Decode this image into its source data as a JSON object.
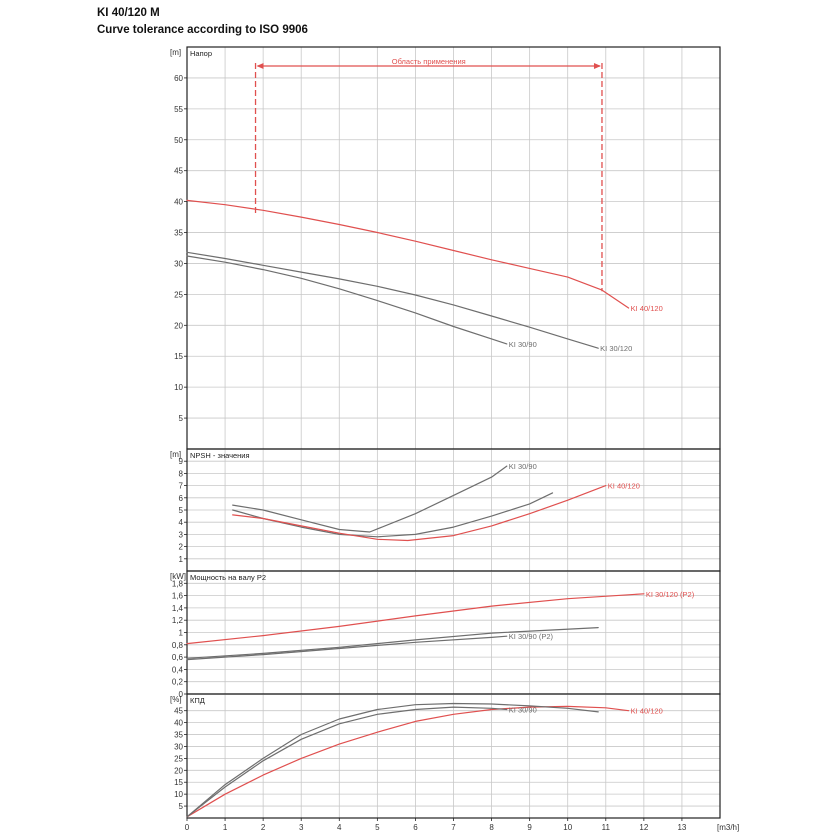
{
  "header": {
    "title": "KI 40/120 M",
    "subtitle": "Curve tolerance according to ISO 9906"
  },
  "colors": {
    "red": "#e0504f",
    "gray": "#6e6e6e",
    "grid": "#c8c8c8",
    "frame": "#222222"
  },
  "chart_data": {
    "type": "line",
    "x_axis": {
      "label": "[m3/h]",
      "range": [
        0,
        14
      ],
      "ticks": [
        "0",
        "1",
        "2",
        "3",
        "4",
        "5",
        "6",
        "7",
        "8",
        "9",
        "10",
        "11",
        "12",
        "13"
      ]
    },
    "application_range": {
      "label": "Область применения",
      "x": [
        1.8,
        10.9
      ]
    },
    "panels": [
      {
        "id": "head",
        "title": "Напор",
        "unit": "[m]",
        "ylim": [
          0,
          65
        ],
        "yticks": [
          "5",
          "10",
          "15",
          "20",
          "25",
          "30",
          "35",
          "40",
          "45",
          "50",
          "55",
          "60"
        ],
        "series": [
          {
            "name": "KI 40/120",
            "color": "red",
            "x": [
              0,
              1,
              2,
              3,
              4,
              5,
              6,
              7,
              8,
              9,
              10,
              10.9,
              11.6
            ],
            "y": [
              40.2,
              39.5,
              38.6,
              37.5,
              36.3,
              35.0,
              33.6,
              32.1,
              30.6,
              29.2,
              27.8,
              25.7,
              22.8
            ]
          },
          {
            "name": "KI 30/120",
            "color": "gray",
            "x": [
              0,
              1,
              2,
              3,
              4,
              5,
              6,
              7,
              8,
              9,
              10,
              10.8
            ],
            "y": [
              31.8,
              30.8,
              29.7,
              28.6,
              27.5,
              26.3,
              24.9,
              23.3,
              21.5,
              19.7,
              17.8,
              16.3
            ]
          },
          {
            "name": "KI 30/90",
            "color": "gray",
            "x": [
              0,
              1,
              2,
              3,
              4,
              5,
              6,
              7,
              8,
              8.4
            ],
            "y": [
              31.2,
              30.2,
              29.0,
              27.6,
              25.9,
              24.0,
              22.0,
              19.8,
              17.8,
              17.0
            ]
          }
        ]
      },
      {
        "id": "npsh",
        "title": "NPSH - значения",
        "unit": "[m]",
        "ylim": [
          0,
          10
        ],
        "yticks": [
          "1",
          "2",
          "3",
          "4",
          "5",
          "6",
          "7",
          "8",
          "9"
        ],
        "series": [
          {
            "name": "KI 30/90",
            "color": "gray",
            "x": [
              1.2,
              2,
              3,
              4,
              4.8,
              6,
              7,
              8,
              8.4
            ],
            "y": [
              5.4,
              5.0,
              4.2,
              3.4,
              3.2,
              4.7,
              6.2,
              7.7,
              8.6
            ]
          },
          {
            "name": "",
            "color": "gray",
            "x": [
              1.2,
              2,
              3,
              4,
              5,
              6,
              7,
              8,
              9,
              9.6
            ],
            "y": [
              5.0,
              4.3,
              3.6,
              3.0,
              2.8,
              3.0,
              3.6,
              4.5,
              5.5,
              6.4
            ]
          },
          {
            "name": "KI 40/120",
            "color": "red",
            "x": [
              1.2,
              2,
              3,
              4,
              5,
              5.8,
              7,
              8,
              9,
              10,
              11
            ],
            "y": [
              4.6,
              4.3,
              3.7,
              3.1,
              2.6,
              2.5,
              2.9,
              3.7,
              4.7,
              5.8,
              7.0
            ]
          }
        ]
      },
      {
        "id": "power",
        "title": "Мощность на валу P2",
        "unit": "[kW]",
        "ylim": [
          0,
          2
        ],
        "yticks": [
          "0",
          "0,2",
          "0,4",
          "0,6",
          "0,8",
          "1",
          "1,2",
          "1,4",
          "1,6",
          "1,8"
        ],
        "series": [
          {
            "name": "KI 30/120 (P2)",
            "color": "red",
            "x": [
              0,
              2,
              4,
              6,
              8,
              10,
              12
            ],
            "y": [
              0.82,
              0.95,
              1.1,
              1.27,
              1.43,
              1.55,
              1.63
            ]
          },
          {
            "name": "KI 30/90 (P2)",
            "color": "gray",
            "x": [
              0,
              2,
              4,
              6,
              8,
              8.4
            ],
            "y": [
              0.56,
              0.64,
              0.74,
              0.84,
              0.92,
              0.94
            ]
          },
          {
            "name": "",
            "color": "gray",
            "x": [
              0,
              2,
              4,
              6,
              8,
              10.8
            ],
            "y": [
              0.58,
              0.66,
              0.76,
              0.88,
              0.99,
              1.08
            ]
          }
        ]
      },
      {
        "id": "efficiency",
        "title": "КПД",
        "unit": "[%]",
        "ylim": [
          0,
          52
        ],
        "yticks": [
          "5",
          "10",
          "15",
          "20",
          "25",
          "30",
          "35",
          "40",
          "45"
        ],
        "series": [
          {
            "name": "KI 40/120",
            "color": "red",
            "x": [
              0,
              1,
              2,
              3,
              4,
              5,
              6,
              7,
              8,
              9,
              10,
              11,
              11.6
            ],
            "y": [
              0.5,
              10,
              18,
              25,
              31,
              36,
              40.5,
              43.5,
              45.5,
              46.5,
              46.8,
              46.2,
              45.0
            ]
          },
          {
            "name": "KI 30/90",
            "color": "gray",
            "x": [
              0,
              1,
              2,
              3,
              4,
              5,
              6,
              7,
              8,
              8.4
            ],
            "y": [
              0.5,
              13,
              24,
              33,
              39.5,
              43.5,
              45.5,
              46.5,
              46.0,
              45.5
            ]
          },
          {
            "name": "",
            "color": "gray",
            "x": [
              0,
              1,
              2,
              3,
              4,
              5,
              6,
              7,
              8,
              9,
              10,
              10.8
            ],
            "y": [
              0.5,
              14,
              25,
              35,
              41.5,
              45.5,
              47.5,
              48.0,
              47.8,
              47.0,
              46.0,
              44.5
            ]
          }
        ]
      }
    ]
  }
}
